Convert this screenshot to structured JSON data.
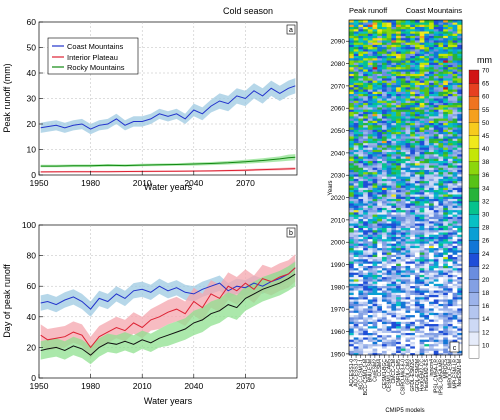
{
  "season_title": "Cold season",
  "chart_data": [
    {
      "id": "a",
      "type": "line",
      "panel_label": "a",
      "xlabel": "Water years",
      "ylabel": "Peak runoff (mm)",
      "xlim": [
        1950,
        2100
      ],
      "ylim": [
        0,
        60
      ],
      "xticks": [
        1950,
        1980,
        2010,
        2040,
        2070
      ],
      "yticks": [
        0,
        10,
        20,
        30,
        40,
        50,
        60
      ],
      "grid": true,
      "legend_position": "top-left",
      "series": [
        {
          "name": "Coast Mountains",
          "color": "#2233cc",
          "band_color": "#9ecae1",
          "x": [
            1951,
            1955,
            1960,
            1965,
            1970,
            1975,
            1980,
            1985,
            1990,
            1995,
            2000,
            2005,
            2010,
            2015,
            2020,
            2025,
            2030,
            2035,
            2040,
            2045,
            2050,
            2055,
            2060,
            2065,
            2070,
            2075,
            2080,
            2085,
            2090,
            2095,
            2099
          ],
          "y": [
            18.5,
            19,
            19.5,
            18.5,
            19.5,
            20,
            18,
            19.5,
            20,
            22,
            19.5,
            21,
            21,
            22,
            24,
            23,
            24,
            22,
            25.5,
            24,
            27,
            29,
            28,
            31,
            30,
            33,
            31,
            34,
            32,
            34,
            35
          ],
          "band": [
            2,
            2,
            2,
            2,
            2,
            2,
            2,
            2,
            2,
            2,
            2,
            2,
            2,
            2,
            2,
            2,
            2,
            2,
            2.5,
            2.5,
            2.5,
            3,
            3,
            3,
            3,
            3,
            3,
            3,
            3,
            3,
            3
          ]
        },
        {
          "name": "Interior Plateau",
          "color": "#dd2233",
          "band_color": "#f4a5ae",
          "x": [
            1951,
            1970,
            1990,
            2010,
            2030,
            2050,
            2070,
            2090,
            2099
          ],
          "y": [
            1.2,
            1.3,
            1.3,
            1.4,
            1.5,
            1.6,
            1.9,
            2.3,
            2.5
          ],
          "band": [
            0.3,
            0.3,
            0.3,
            0.3,
            0.3,
            0.3,
            0.4,
            0.5,
            0.5
          ]
        },
        {
          "name": "Rocky Mountains",
          "color": "#118811",
          "band_color": "#8fe08f",
          "x": [
            1951,
            1960,
            1970,
            1980,
            1990,
            2000,
            2010,
            2020,
            2030,
            2040,
            2050,
            2060,
            2070,
            2080,
            2090,
            2095,
            2099
          ],
          "y": [
            3.5,
            3.5,
            3.6,
            3.6,
            3.8,
            3.7,
            3.9,
            4.0,
            4.1,
            4.3,
            4.5,
            4.8,
            5.2,
            5.7,
            6.3,
            6.8,
            7
          ],
          "band": [
            0.5,
            0.5,
            0.5,
            0.5,
            0.5,
            0.5,
            0.5,
            0.5,
            0.5,
            0.6,
            0.6,
            0.7,
            0.8,
            0.9,
            1.0,
            1.2,
            1.2
          ]
        }
      ]
    },
    {
      "id": "b",
      "type": "line",
      "panel_label": "b",
      "xlabel": "Water years",
      "ylabel": "Day of peak runoff",
      "xlim": [
        1950,
        2100
      ],
      "ylim": [
        0,
        100
      ],
      "xticks": [
        1950,
        1980,
        2010,
        2040,
        2070
      ],
      "yticks": [
        0,
        20,
        40,
        60,
        80,
        100
      ],
      "grid": true,
      "series": [
        {
          "name": "Coast Mountains",
          "color": "#2233cc",
          "band_color": "#9ecae1",
          "x": [
            1951,
            1955,
            1960,
            1965,
            1970,
            1975,
            1980,
            1985,
            1990,
            1995,
            2000,
            2005,
            2010,
            2015,
            2020,
            2025,
            2030,
            2035,
            2040,
            2045,
            2050,
            2055,
            2060,
            2065,
            2070,
            2075,
            2080,
            2085,
            2090,
            2095,
            2099
          ],
          "y": [
            49,
            50,
            48,
            51,
            53,
            50,
            45,
            52,
            50,
            55,
            52,
            57,
            58,
            56,
            60,
            57,
            59,
            56,
            55,
            58,
            60,
            62,
            57,
            60,
            59,
            62,
            60,
            63,
            65,
            68,
            72
          ],
          "band": [
            5,
            5,
            5,
            5,
            5,
            5,
            5,
            5,
            5,
            5,
            5,
            5,
            5,
            5,
            5,
            5,
            5,
            5,
            5,
            5,
            5,
            5,
            5,
            5,
            5,
            5,
            5,
            5,
            5,
            5,
            5
          ]
        },
        {
          "name": "Interior Plateau",
          "color": "#dd2233",
          "band_color": "#f4a5ae",
          "x": [
            1951,
            1955,
            1960,
            1965,
            1970,
            1975,
            1980,
            1985,
            1990,
            1995,
            2000,
            2005,
            2010,
            2015,
            2020,
            2025,
            2030,
            2035,
            2040,
            2045,
            2050,
            2055,
            2060,
            2065,
            2070,
            2075,
            2080,
            2085,
            2090,
            2095,
            2099
          ],
          "y": [
            28,
            25,
            26,
            27,
            30,
            28,
            20,
            27,
            30,
            33,
            31,
            36,
            33,
            38,
            40,
            43,
            45,
            42,
            50,
            46,
            55,
            52,
            60,
            57,
            62,
            58,
            65,
            63,
            66,
            68,
            72
          ],
          "band": [
            7,
            7,
            7,
            7,
            7,
            7,
            7,
            7,
            7,
            7,
            7,
            7,
            7,
            7,
            8,
            8,
            8,
            8,
            9,
            9,
            9,
            9,
            9,
            9,
            9,
            9,
            9,
            9,
            9,
            9,
            9
          ]
        },
        {
          "name": "Rocky Mountains",
          "color": "#111111",
          "band_color": "#8fe08f",
          "x": [
            1951,
            1955,
            1960,
            1965,
            1970,
            1975,
            1980,
            1985,
            1990,
            1995,
            2000,
            2005,
            2010,
            2015,
            2020,
            2025,
            2030,
            2035,
            2040,
            2045,
            2050,
            2055,
            2060,
            2065,
            2070,
            2075,
            2080,
            2085,
            2090,
            2095,
            2099
          ],
          "y": [
            18,
            19,
            20,
            18,
            21,
            19,
            15,
            20,
            23,
            22,
            24,
            22,
            25,
            23,
            26,
            28,
            30,
            32,
            36,
            38,
            42,
            44,
            48,
            46,
            52,
            55,
            58,
            60,
            62,
            65,
            68
          ],
          "band": [
            6,
            6,
            6,
            6,
            6,
            6,
            6,
            6,
            6,
            6,
            6,
            6,
            6,
            6,
            6,
            7,
            7,
            7,
            8,
            8,
            8,
            8,
            8,
            8,
            8,
            8,
            8,
            8,
            8,
            8,
            8
          ]
        }
      ]
    },
    {
      "id": "c",
      "type": "heatmap",
      "panel_label": "c",
      "title_left": "Peak runoff",
      "title_right": "Coast Mountains",
      "xlabel": "CMIP5 models",
      "ylabel": "Years",
      "ylim": [
        1950,
        2099
      ],
      "yticks": [
        1950,
        1960,
        1970,
        1980,
        1990,
        2000,
        2010,
        2020,
        2030,
        2040,
        2050,
        2060,
        2070,
        2080,
        2090
      ],
      "models": [
        "ACCESS1-0",
        "ACCESS1-3",
        "BCC-CSM1-1",
        "BCC-CSM1-1-M",
        "BNU-ESM",
        "CanESM2",
        "CCSM4",
        "CESM1-BGC",
        "CESM1-CAM5",
        "CMCC-CM",
        "CNRM-CM5",
        "CSIRO-Mk3-6-0",
        "GFDL-CM3",
        "GFDL-ESM2G",
        "GFDL-ESM2M",
        "HadGEM2-CC",
        "HadGEM2-ES",
        "inmcm4",
        "IPSL-CM5A-LR",
        "IPSL-CM5A-MR",
        "MIROC5",
        "MIROC-ESM",
        "MPI-ESM-LR",
        "NorESM1-M"
      ],
      "colorbar_unit": "mm",
      "colorbar_levels": [
        10,
        12,
        14,
        16,
        18,
        20,
        22,
        24,
        26,
        28,
        30,
        32,
        34,
        36,
        38,
        40,
        45,
        50,
        55,
        60,
        65,
        70
      ],
      "colorbar_colors": [
        "#ffffff",
        "#e6ecfa",
        "#cdd9f5",
        "#b4c6ef",
        "#9cb3ea",
        "#83a0e4",
        "#6a8ddf",
        "#1f4ed8",
        "#1276d6",
        "#0a9fd4",
        "#08c0c4",
        "#06c28d",
        "#27b33a",
        "#58c217",
        "#8cd60c",
        "#c4e607",
        "#f0e91c",
        "#f7cb1d",
        "#f5a01d",
        "#ef7420",
        "#e64020",
        "#d11415"
      ]
    }
  ]
}
